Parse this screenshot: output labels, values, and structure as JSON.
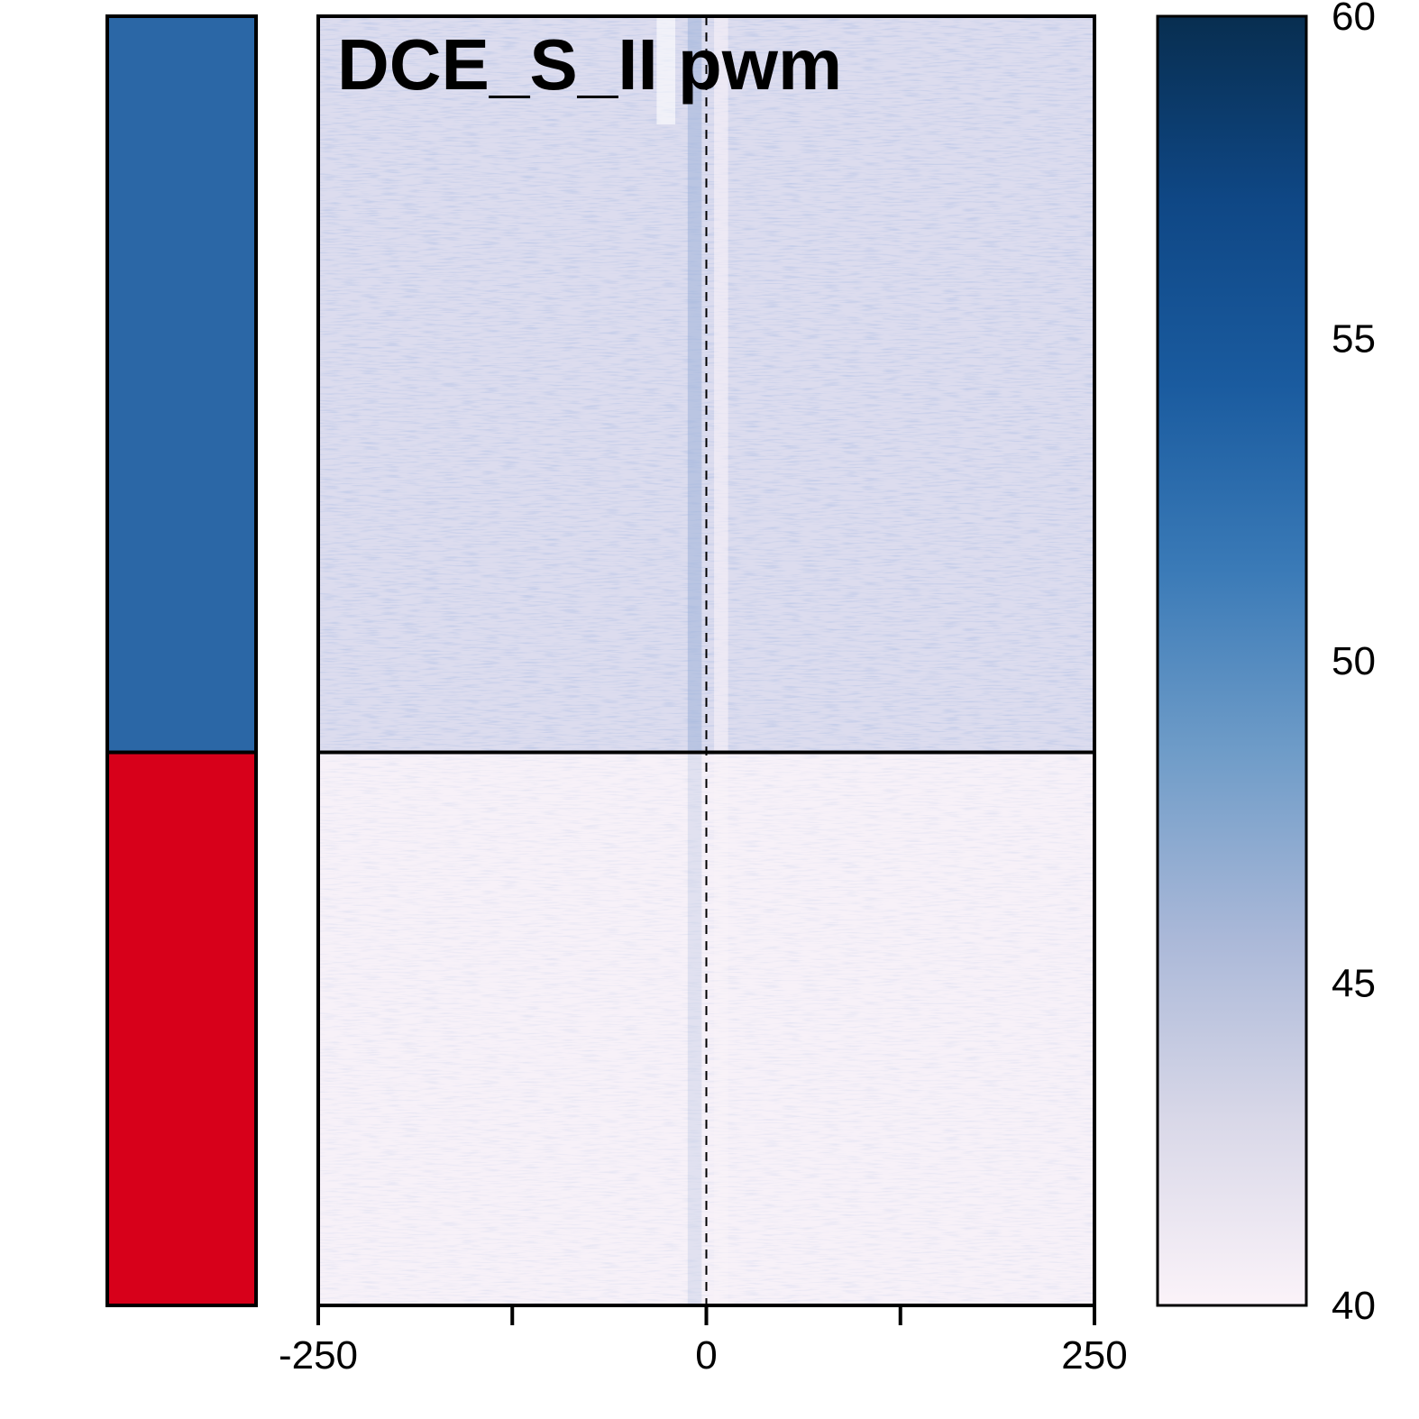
{
  "chart_data": {
    "type": "heatmap",
    "title": "DCE_S_II pwm",
    "xlabel": "",
    "ylabel": "",
    "x_ticks": [
      -250,
      -125,
      0,
      125,
      250
    ],
    "x_tick_labels": [
      "-250",
      "0",
      "250"
    ],
    "xlim": [
      -250,
      250
    ],
    "reference_line_x": 0,
    "clusters": [
      {
        "color": "#2b67a6",
        "row_fraction": 0.571,
        "mean_level": 45.0,
        "center_enrichment": "high"
      },
      {
        "color": "#d7001a",
        "row_fraction": 0.429,
        "mean_level": 41.0,
        "center_enrichment": "low"
      }
    ],
    "colorbar": {
      "min": 40,
      "max": 60,
      "ticks": [
        40,
        45,
        50,
        55,
        60
      ],
      "tick_labels": [
        "40",
        "45",
        "50",
        "55",
        "60"
      ],
      "colors": [
        "#fbf3f9",
        "#d9d8e8",
        "#aab8d8",
        "#6f9cc8",
        "#3a7ab7",
        "#1a5b9f",
        "#0f4785",
        "#082e50"
      ]
    },
    "grid": false,
    "legend": "none"
  }
}
